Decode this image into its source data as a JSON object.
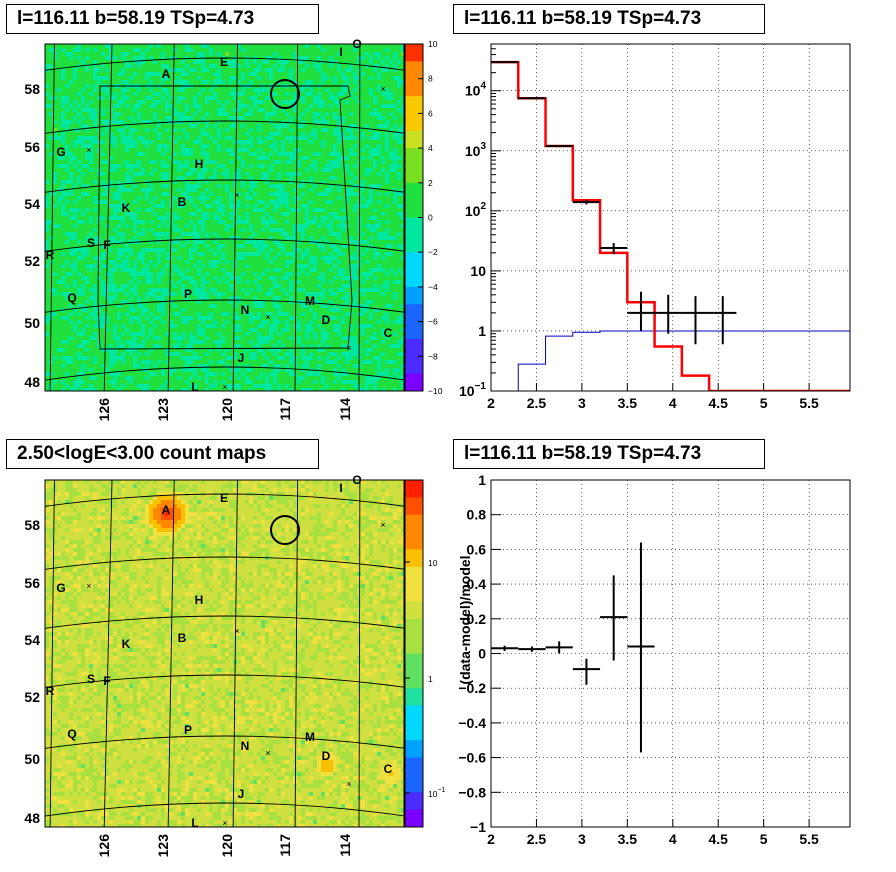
{
  "panels": {
    "tl_title": "l=116.11 b=58.19 TSp=4.73",
    "tr_title": "l=116.11 b=58.19 TSp=4.73",
    "bl_title": "2.50<logE<3.00 count maps",
    "br_title": "l=116.11 b=58.19 TSp=4.73"
  },
  "maps": {
    "lat_labels": [
      "58",
      "56",
      "54",
      "52",
      "50",
      "48"
    ],
    "lon_labels": [
      "126",
      "123",
      "120",
      "117",
      "114"
    ],
    "sources": [
      "A",
      "E",
      "I",
      "O",
      "G",
      "H",
      "K",
      "B",
      "S",
      "F",
      "R",
      "Q",
      "P",
      "N",
      "M",
      "D",
      "C",
      "J",
      "L"
    ],
    "residual_colorbar": [
      "10",
      "8",
      "6",
      "4",
      "2",
      "0",
      "−2",
      "−4",
      "−6",
      "−8",
      "−10"
    ],
    "counts_colorbar": {
      "ten": "10",
      "one": "1",
      "tenth_base": "10",
      "tenth_exp": "−1"
    }
  },
  "chart_data": [
    {
      "type": "line",
      "title": "l=116.11 b=58.19 TSp=4.73",
      "log_y": true,
      "xlim": [
        2.0,
        5.95
      ],
      "ylim": [
        0.1,
        60000
      ],
      "x_ticks": [
        "2",
        "2.5",
        "3",
        "3.5",
        "4",
        "4.5",
        "5",
        "5.5"
      ],
      "y_ticks": [
        "10^-1",
        "1",
        "10",
        "10^2",
        "10^3",
        "10^4"
      ],
      "grid": true,
      "series": [
        {
          "role": "model_total",
          "color": "#ff0000",
          "bins": [
            2.0,
            2.3,
            2.6,
            2.9,
            3.2,
            3.5,
            3.8,
            4.1,
            4.4,
            5.95
          ],
          "values": [
            30000,
            7500,
            1200,
            150,
            20,
            3.0,
            0.55,
            0.18,
            0.1
          ]
        },
        {
          "role": "background",
          "color": "#0000cc",
          "bins": [
            2.0,
            2.3,
            2.6,
            2.9,
            3.2,
            5.95
          ],
          "values": [
            0.05,
            0.28,
            0.82,
            0.95,
            1.0
          ]
        },
        {
          "role": "data",
          "color": "#000000",
          "points": [
            {
              "x": 2.15,
              "y": 30000,
              "xerr": 0.15,
              "ylo": 29500,
              "yhi": 30500
            },
            {
              "x": 2.45,
              "y": 7500,
              "xerr": 0.15,
              "ylo": 7350,
              "yhi": 7650
            },
            {
              "x": 2.75,
              "y": 1200,
              "xerr": 0.15,
              "ylo": 1150,
              "yhi": 1250
            },
            {
              "x": 3.05,
              "y": 140,
              "xerr": 0.15,
              "ylo": 128,
              "yhi": 152
            },
            {
              "x": 3.35,
              "y": 24,
              "xerr": 0.15,
              "ylo": 19,
              "yhi": 29
            },
            {
              "x": 3.65,
              "y": 2.0,
              "xerr": 0.15,
              "ylo": 1.0,
              "yhi": 4.5
            },
            {
              "x": 3.95,
              "y": 2.0,
              "xerr": 0.15,
              "ylo": 0.9,
              "yhi": 4.0
            },
            {
              "x": 4.25,
              "y": 2.0,
              "xerr": 0.15,
              "ylo": 0.6,
              "yhi": 3.8
            },
            {
              "x": 4.55,
              "y": 2.0,
              "xerr": 0.15,
              "ylo": 0.6,
              "yhi": 3.8
            }
          ]
        }
      ]
    },
    {
      "type": "scatter",
      "title": "l=116.11 b=58.19 TSp=4.73",
      "ylabel": "(data-model)/model",
      "xlim": [
        2.0,
        5.95
      ],
      "ylim": [
        -1,
        1
      ],
      "x_ticks": [
        "2",
        "2.5",
        "3",
        "3.5",
        "4",
        "4.5",
        "5",
        "5.5"
      ],
      "y_ticks": [
        "−1",
        "−0.8",
        "−0.6",
        "−0.4",
        "−0.2",
        "0",
        "0.2",
        "0.4",
        "0.6",
        "0.8",
        "1"
      ],
      "grid": true,
      "points": [
        {
          "x": 2.15,
          "y": 0.03,
          "xerr": 0.15,
          "ylo": 0.015,
          "yhi": 0.045
        },
        {
          "x": 2.45,
          "y": 0.025,
          "xerr": 0.15,
          "ylo": 0.01,
          "yhi": 0.04
        },
        {
          "x": 2.75,
          "y": 0.035,
          "xerr": 0.15,
          "ylo": 0.0,
          "yhi": 0.07
        },
        {
          "x": 3.05,
          "y": -0.09,
          "xerr": 0.15,
          "ylo": -0.18,
          "yhi": -0.03
        },
        {
          "x": 3.35,
          "y": 0.21,
          "xerr": 0.15,
          "ylo": -0.04,
          "yhi": 0.45
        },
        {
          "x": 3.65,
          "y": 0.04,
          "xerr": 0.15,
          "ylo": -0.57,
          "yhi": 0.64
        }
      ]
    }
  ]
}
